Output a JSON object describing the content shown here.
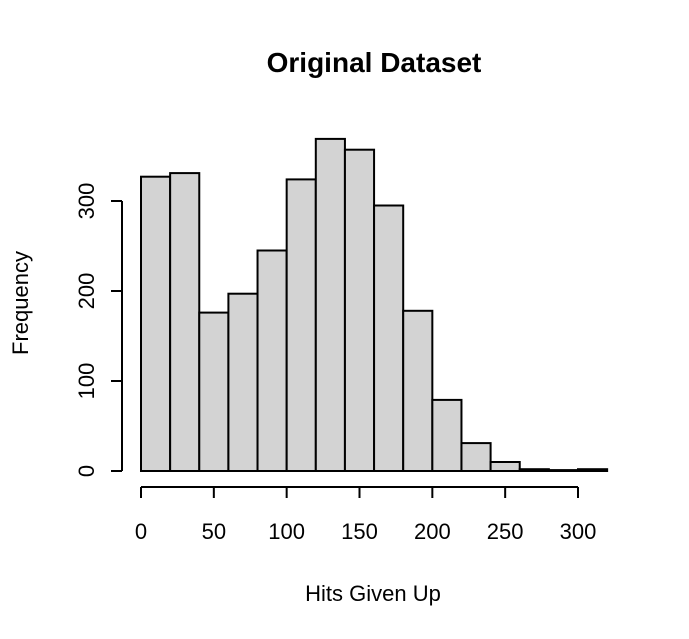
{
  "chart_data": {
    "type": "bar",
    "title": "Original Dataset",
    "xlabel": "Hits Given Up",
    "ylabel": "Frequency",
    "bin_width": 20,
    "bins": [
      {
        "start": 0,
        "end": 20,
        "count": 327
      },
      {
        "start": 20,
        "end": 40,
        "count": 331
      },
      {
        "start": 40,
        "end": 60,
        "count": 176
      },
      {
        "start": 60,
        "end": 80,
        "count": 197
      },
      {
        "start": 80,
        "end": 100,
        "count": 245
      },
      {
        "start": 100,
        "end": 120,
        "count": 324
      },
      {
        "start": 120,
        "end": 140,
        "count": 369
      },
      {
        "start": 140,
        "end": 160,
        "count": 357
      },
      {
        "start": 160,
        "end": 180,
        "count": 295
      },
      {
        "start": 180,
        "end": 200,
        "count": 178
      },
      {
        "start": 200,
        "end": 220,
        "count": 79
      },
      {
        "start": 220,
        "end": 240,
        "count": 31
      },
      {
        "start": 240,
        "end": 260,
        "count": 10
      },
      {
        "start": 260,
        "end": 280,
        "count": 2
      },
      {
        "start": 280,
        "end": 300,
        "count": 1
      },
      {
        "start": 300,
        "end": 320,
        "count": 2
      }
    ],
    "xlim": [
      0,
      320
    ],
    "ylim": [
      0,
      369
    ],
    "x_ticks": [
      "0",
      "50",
      "100",
      "150",
      "200",
      "250",
      "300"
    ],
    "y_ticks": [
      "0",
      "100",
      "200",
      "300"
    ],
    "colors": {
      "bar_fill": "#d3d3d3",
      "bar_stroke": "#000000"
    }
  }
}
